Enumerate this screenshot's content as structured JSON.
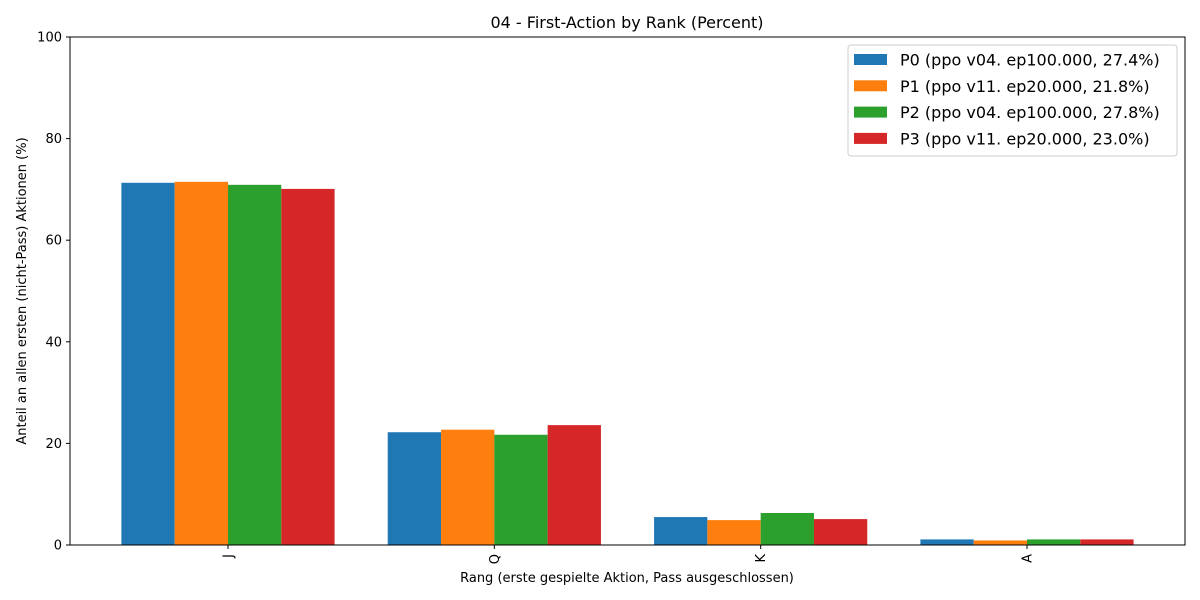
{
  "chart_data": {
    "type": "bar",
    "title": "04 - First-Action by Rank (Percent)",
    "xlabel": "Rang (erste gespielte Aktion, Pass ausgeschlossen)",
    "ylabel": "Anteil an allen ersten (nicht-Pass) Aktionen (%)",
    "ylim": [
      0,
      100
    ],
    "yticks": [
      "0",
      "20",
      "40",
      "60",
      "80",
      "100"
    ],
    "categories": [
      "J",
      "Q",
      "K",
      "A"
    ],
    "legend_position": "top-right",
    "grid": false,
    "series": [
      {
        "name": "P0 (ppo v04. ep100.000, 27.4%)",
        "color": "#1f77b4",
        "values": [
          71.3,
          22.2,
          5.5,
          1.1
        ]
      },
      {
        "name": "P1 (ppo v11. ep20.000, 21.8%)",
        "color": "#ff7f0e",
        "values": [
          71.5,
          22.7,
          4.9,
          0.9
        ]
      },
      {
        "name": "P2 (ppo v04. ep100.000, 27.8%)",
        "color": "#2ca02c",
        "values": [
          70.9,
          21.7,
          6.3,
          1.1
        ]
      },
      {
        "name": "P3 (ppo v11. ep20.000, 23.0%)",
        "color": "#d62728",
        "values": [
          70.1,
          23.6,
          5.1,
          1.1
        ]
      }
    ]
  }
}
